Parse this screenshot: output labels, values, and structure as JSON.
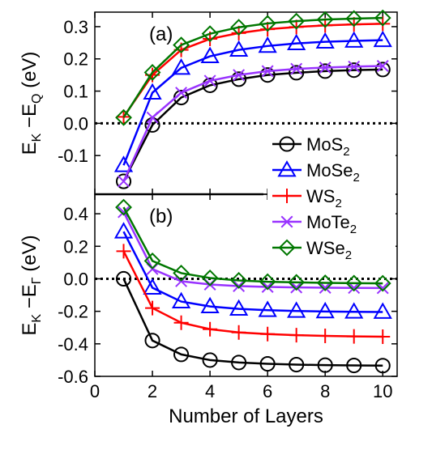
{
  "chart_data": [
    {
      "type": "line",
      "panel_label": "(a)",
      "ylabel_main": "E",
      "ylabel_sub1": "K",
      "ylabel_mid": " −E",
      "ylabel_sub2": "Q",
      "ylabel_unit": " (eV)",
      "xlim": [
        0,
        10.5
      ],
      "ylim": [
        -0.22,
        0.345
      ],
      "yticks": [
        "0.3",
        "0.2",
        "0.1",
        "0.0",
        "-0.1"
      ],
      "ytick_values": [
        0.3,
        0.2,
        0.1,
        0.0,
        -0.1
      ],
      "reference_line": 0.0,
      "x": [
        1,
        2,
        3,
        4,
        5,
        6,
        7,
        8,
        9,
        10
      ],
      "series": [
        {
          "key": "MoS2",
          "color": "#000000",
          "marker": "circle",
          "values": [
            -0.18,
            -0.005,
            0.08,
            0.118,
            0.137,
            0.15,
            0.157,
            0.162,
            0.165,
            0.167
          ]
        },
        {
          "key": "MoSe2",
          "color": "#0000ff",
          "marker": "triangle",
          "values": [
            -0.13,
            0.095,
            0.172,
            0.208,
            0.228,
            0.24,
            0.248,
            0.253,
            0.256,
            0.258
          ]
        },
        {
          "key": "WS2",
          "color": "#ff0000",
          "marker": "plus",
          "values": [
            0.02,
            0.15,
            0.228,
            0.262,
            0.28,
            0.292,
            0.299,
            0.304,
            0.307,
            0.309
          ]
        },
        {
          "key": "MoTe2",
          "color": "#9933ff",
          "marker": "cross",
          "values": [
            -0.18,
            0.018,
            0.095,
            0.132,
            0.15,
            0.162,
            0.169,
            0.173,
            0.176,
            0.178
          ]
        },
        {
          "key": "WSe2",
          "color": "#007700",
          "marker": "diamond",
          "values": [
            0.018,
            0.158,
            0.243,
            0.278,
            0.298,
            0.31,
            0.317,
            0.322,
            0.325,
            0.327
          ]
        }
      ]
    },
    {
      "type": "line",
      "panel_label": "(b)",
      "ylabel_main": "E",
      "ylabel_sub1": "K",
      "ylabel_mid": " −E",
      "ylabel_sub2": "Γ",
      "ylabel_unit": " (eV)",
      "xlabel": "Number of Layers",
      "xlim": [
        0,
        10.5
      ],
      "ylim": [
        -0.6,
        0.52
      ],
      "xticks": [
        "0",
        "2",
        "4",
        "6",
        "8",
        "10"
      ],
      "xtick_values": [
        0,
        2,
        4,
        6,
        8,
        10
      ],
      "yticks": [
        "0.4",
        "0.2",
        "0.0",
        "-0.2",
        "-0.4",
        "-0.6"
      ],
      "ytick_values": [
        0.4,
        0.2,
        0.0,
        -0.2,
        -0.4,
        -0.6
      ],
      "reference_line": 0.0,
      "x": [
        1,
        2,
        3,
        4,
        5,
        6,
        7,
        8,
        9,
        10
      ],
      "series": [
        {
          "key": "MoS2",
          "color": "#000000",
          "marker": "circle",
          "values": [
            0.0,
            -0.38,
            -0.465,
            -0.5,
            -0.515,
            -0.523,
            -0.528,
            -0.531,
            -0.533,
            -0.534
          ]
        },
        {
          "key": "MoSe2",
          "color": "#0000ff",
          "marker": "triangle",
          "values": [
            0.29,
            -0.055,
            -0.14,
            -0.17,
            -0.185,
            -0.193,
            -0.198,
            -0.201,
            -0.203,
            -0.204
          ]
        },
        {
          "key": "WS2",
          "color": "#ff0000",
          "marker": "plus",
          "values": [
            0.17,
            -0.18,
            -0.27,
            -0.31,
            -0.33,
            -0.34,
            -0.347,
            -0.351,
            -0.354,
            -0.356
          ]
        },
        {
          "key": "MoTe2",
          "color": "#9933ff",
          "marker": "cross",
          "values": [
            0.41,
            0.06,
            -0.015,
            -0.035,
            -0.045,
            -0.05,
            -0.053,
            -0.055,
            -0.056,
            -0.057
          ]
        },
        {
          "key": "WSe2",
          "color": "#007700",
          "marker": "diamond",
          "values": [
            0.44,
            0.11,
            0.035,
            0.005,
            -0.01,
            -0.018,
            -0.022,
            -0.025,
            -0.027,
            -0.028
          ]
        }
      ]
    }
  ],
  "legend": [
    {
      "key": "MoS2",
      "label_main": "MoS",
      "label_sub": "2",
      "color": "#000000",
      "marker": "circle"
    },
    {
      "key": "MoSe2",
      "label_main": "MoSe",
      "label_sub": "2",
      "color": "#0000ff",
      "marker": "triangle"
    },
    {
      "key": "WS2",
      "label_main": "WS",
      "label_sub": "2",
      "color": "#ff0000",
      "marker": "plus"
    },
    {
      "key": "MoTe2",
      "label_main": "MoTe",
      "label_sub": "2",
      "color": "#9933ff",
      "marker": "cross"
    },
    {
      "key": "WSe2",
      "label_main": "WSe",
      "label_sub": "2",
      "color": "#007700",
      "marker": "diamond"
    }
  ]
}
